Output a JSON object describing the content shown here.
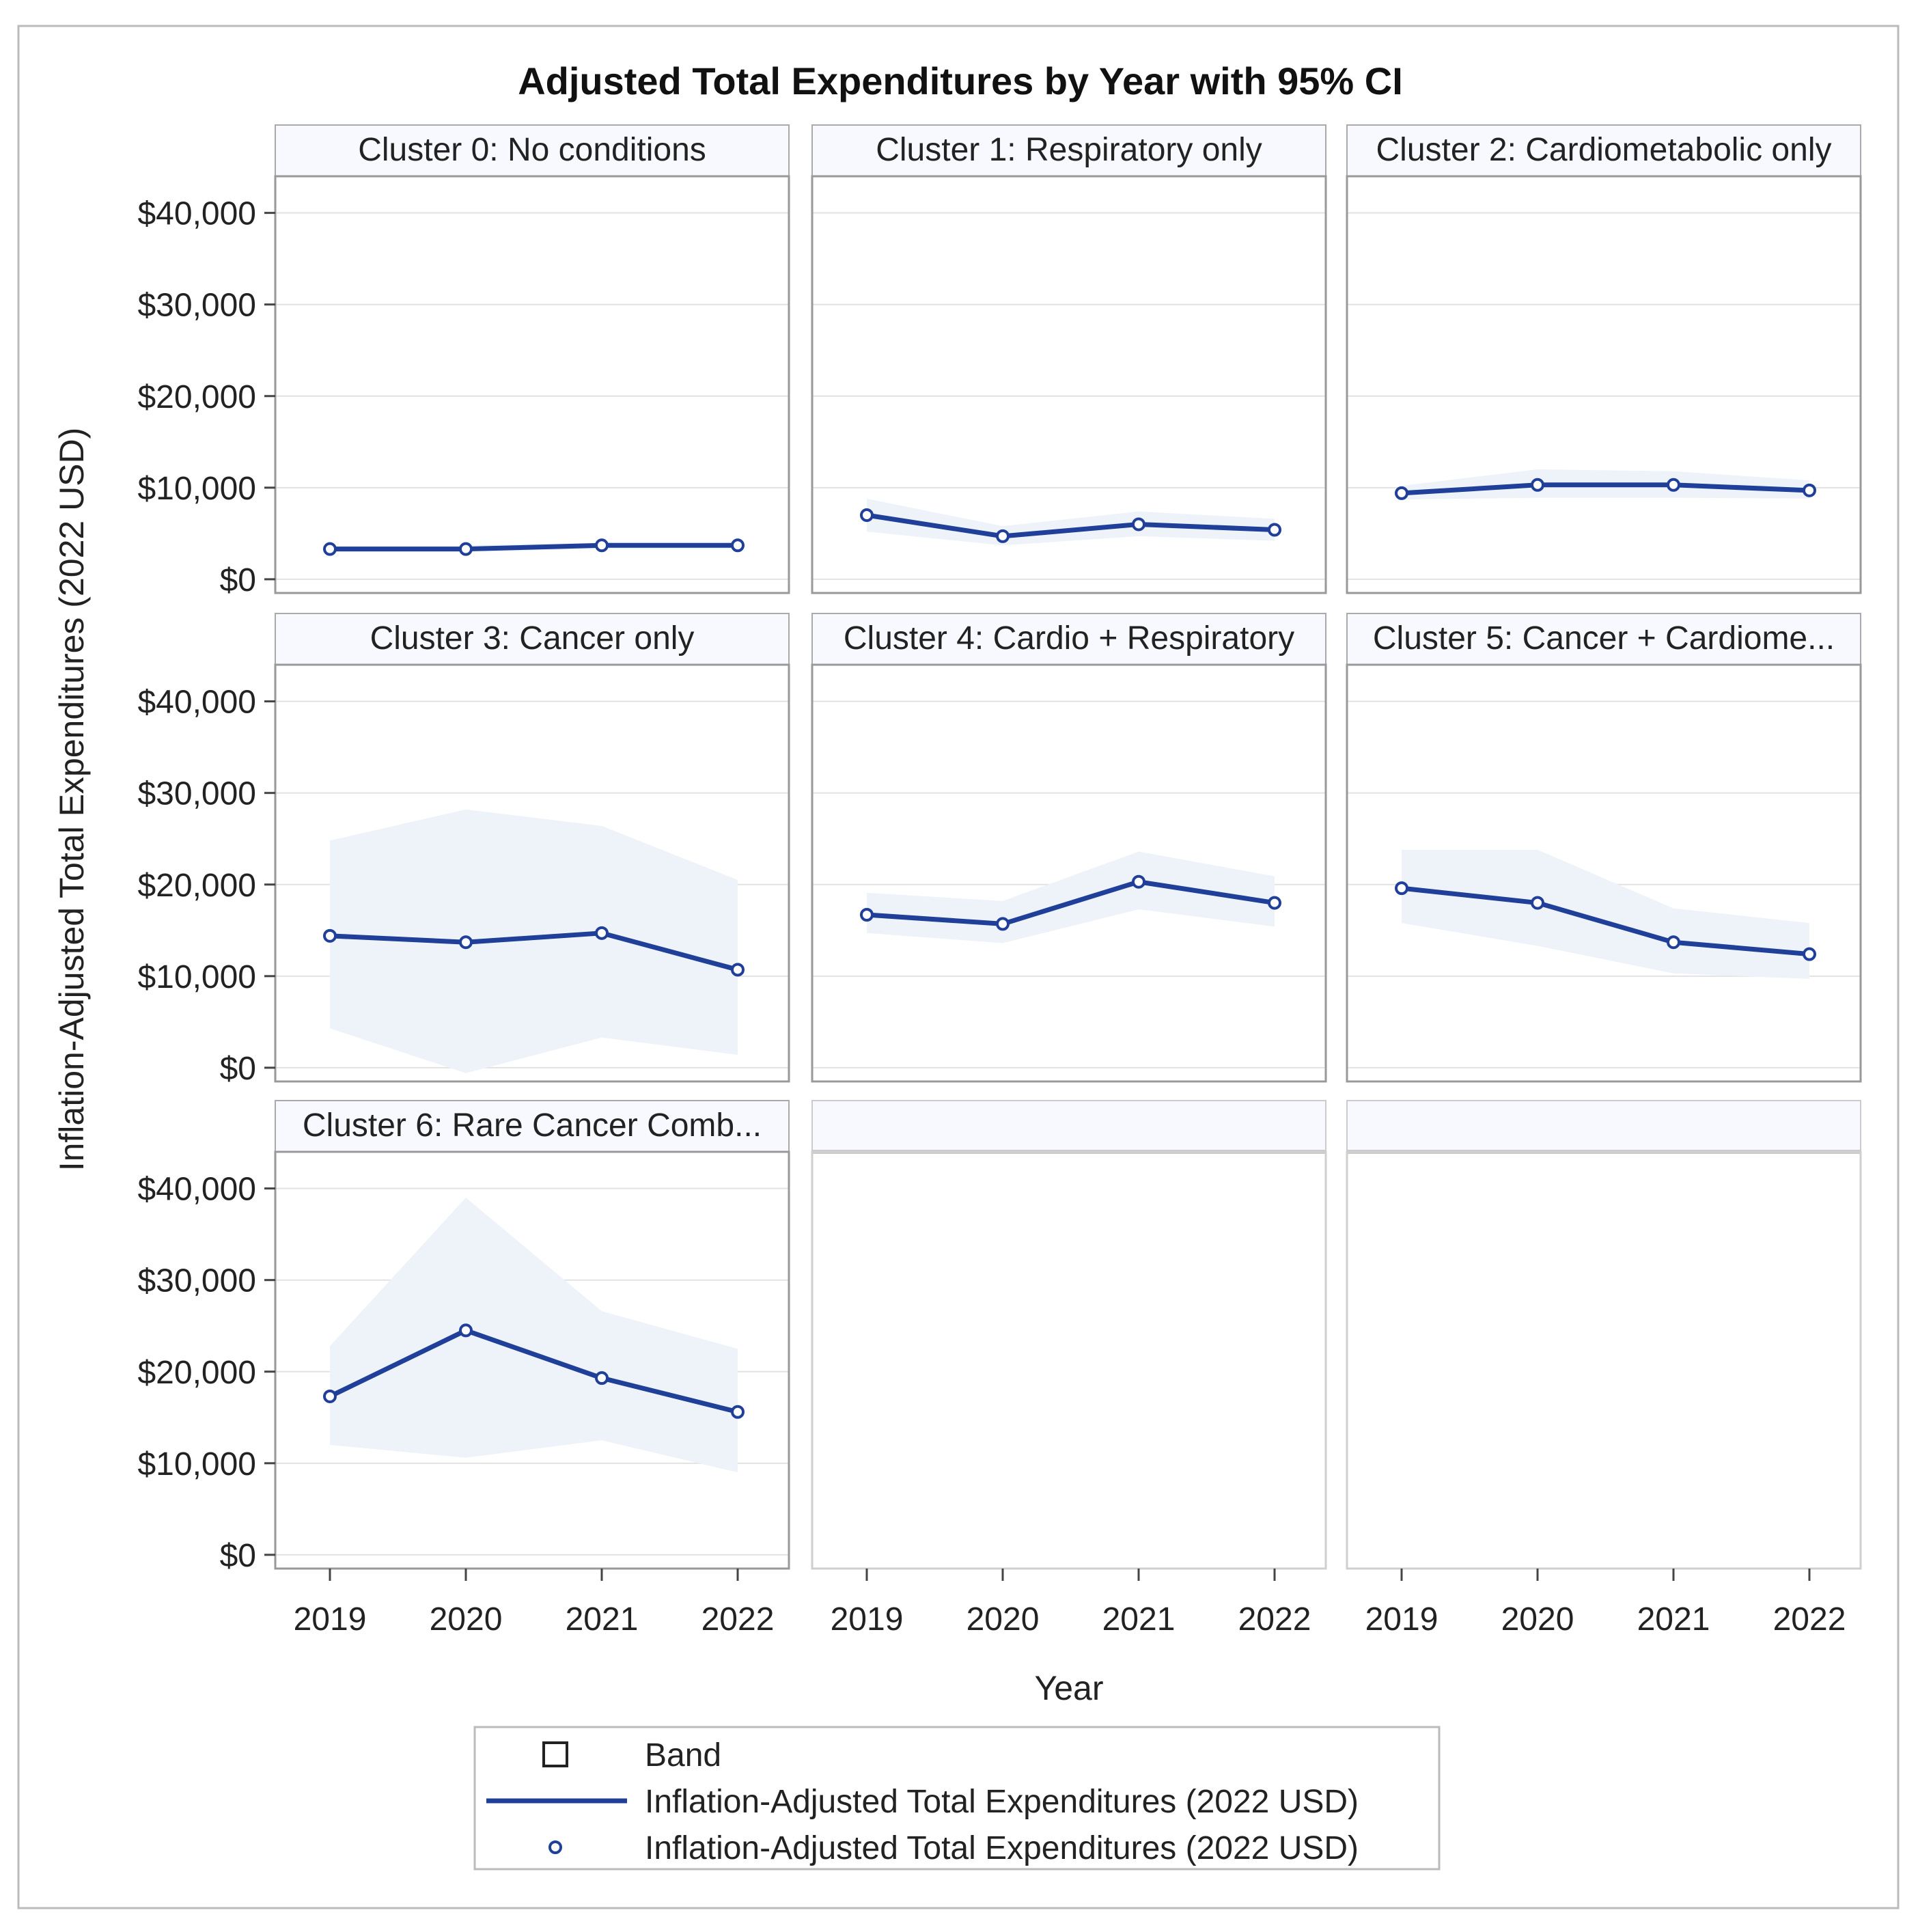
{
  "chart_data": {
    "type": "line",
    "title": "Adjusted Total Expenditures by Year with 95% CI",
    "xlabel": "Year",
    "ylabel": "Inflation-Adjusted Total Expenditures (2022 USD)",
    "x": [
      "2019",
      "2020",
      "2021",
      "2022"
    ],
    "y_ticks": [
      "$40,000",
      "$30,000",
      "$20,000",
      "$10,000",
      "$0"
    ],
    "y_tick_values": [
      40000,
      30000,
      20000,
      10000,
      0
    ],
    "ylim": [
      -1500,
      44000
    ],
    "colors": {
      "line": "#1f3f99",
      "band": "#eef3fa",
      "header": "#f7f9ff"
    },
    "panels": [
      {
        "label": "Cluster 0: No conditions",
        "values": [
          3300,
          3300,
          3700,
          3700
        ],
        "lower": [
          3000,
          3000,
          3300,
          3300
        ],
        "upper": [
          3700,
          3700,
          4000,
          4000
        ]
      },
      {
        "label": "Cluster 1: Respiratory only",
        "values": [
          7000,
          4700,
          6000,
          5400
        ],
        "lower": [
          5200,
          3700,
          4700,
          4200
        ],
        "upper": [
          8800,
          5800,
          7400,
          6600
        ]
      },
      {
        "label": "Cluster 2: Cardiometabolic only",
        "values": [
          9400,
          10300,
          10300,
          9700
        ],
        "lower": [
          8700,
          8900,
          8900,
          8800
        ],
        "upper": [
          10200,
          12000,
          11800,
          10800
        ]
      },
      {
        "label": "Cluster 3: Cancer only",
        "values": [
          14400,
          13700,
          14700,
          10700
        ],
        "lower": [
          4300,
          -600,
          3300,
          1400
        ],
        "upper": [
          24800,
          28200,
          26400,
          20500
        ]
      },
      {
        "label": "Cluster 4: Cardio + Respiratory",
        "values": [
          16700,
          15700,
          20300,
          18000
        ],
        "lower": [
          14700,
          13600,
          17300,
          15400
        ],
        "upper": [
          19100,
          18200,
          23600,
          20900
        ]
      },
      {
        "label": "Cluster 5: Cancer + Cardiome...",
        "values": [
          19600,
          18000,
          13700,
          12400
        ],
        "lower": [
          15800,
          13300,
          10300,
          9700
        ],
        "upper": [
          23800,
          23800,
          17400,
          15800
        ]
      },
      {
        "label": "Cluster 6: Rare Cancer Comb...",
        "values": [
          17300,
          24500,
          19300,
          15600
        ],
        "lower": [
          12000,
          10600,
          12500,
          9000
        ],
        "upper": [
          22800,
          39000,
          26600,
          22500
        ]
      },
      {
        "label": "",
        "values": [],
        "lower": [],
        "upper": []
      },
      {
        "label": "",
        "values": [],
        "lower": [],
        "upper": []
      }
    ],
    "legend": {
      "items": [
        {
          "symbol": "square",
          "label": "Band"
        },
        {
          "symbol": "line",
          "label": "Inflation-Adjusted Total Expenditures (2022 USD)"
        },
        {
          "symbol": "circle",
          "label": "Inflation-Adjusted Total Expenditures (2022 USD)"
        }
      ],
      "position": "bottom"
    }
  }
}
